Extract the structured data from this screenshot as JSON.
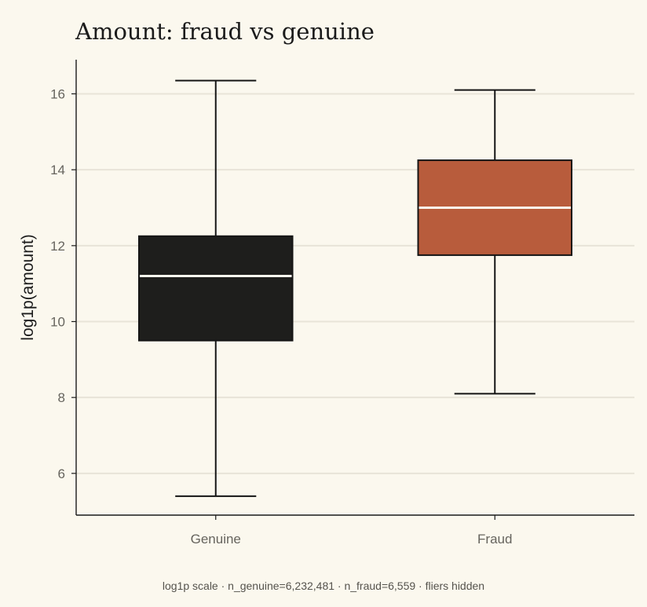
{
  "chart_data": {
    "type": "box",
    "title": "Amount: fraud vs genuine",
    "xlabel": "",
    "ylabel": "log1p(amount)",
    "caption": "log1p scale · n_genuine=6,232,481 · n_fraud=6,559 · fliers hidden",
    "ylim": [
      4.9,
      16.9
    ],
    "yticks": [
      6,
      8,
      10,
      12,
      14,
      16
    ],
    "grid": "horizontal",
    "categories": [
      "Genuine",
      "Fraud"
    ],
    "boxes": [
      {
        "category": "Genuine",
        "whisker_low": 5.4,
        "q1": 9.5,
        "median": 11.2,
        "q3": 12.25,
        "whisker_high": 16.35,
        "color": "#1e1e1c"
      },
      {
        "category": "Fraud",
        "whisker_low": 8.1,
        "q1": 11.75,
        "median": 13.0,
        "q3": 14.25,
        "whisker_high": 16.1,
        "color": "#b85c3c"
      }
    ],
    "colors": {
      "background": "#fbf8ee",
      "grid": "#e8e4d8",
      "axis": "#1b1b1b",
      "median": "#fbf8ee",
      "outline": "#151515"
    }
  }
}
